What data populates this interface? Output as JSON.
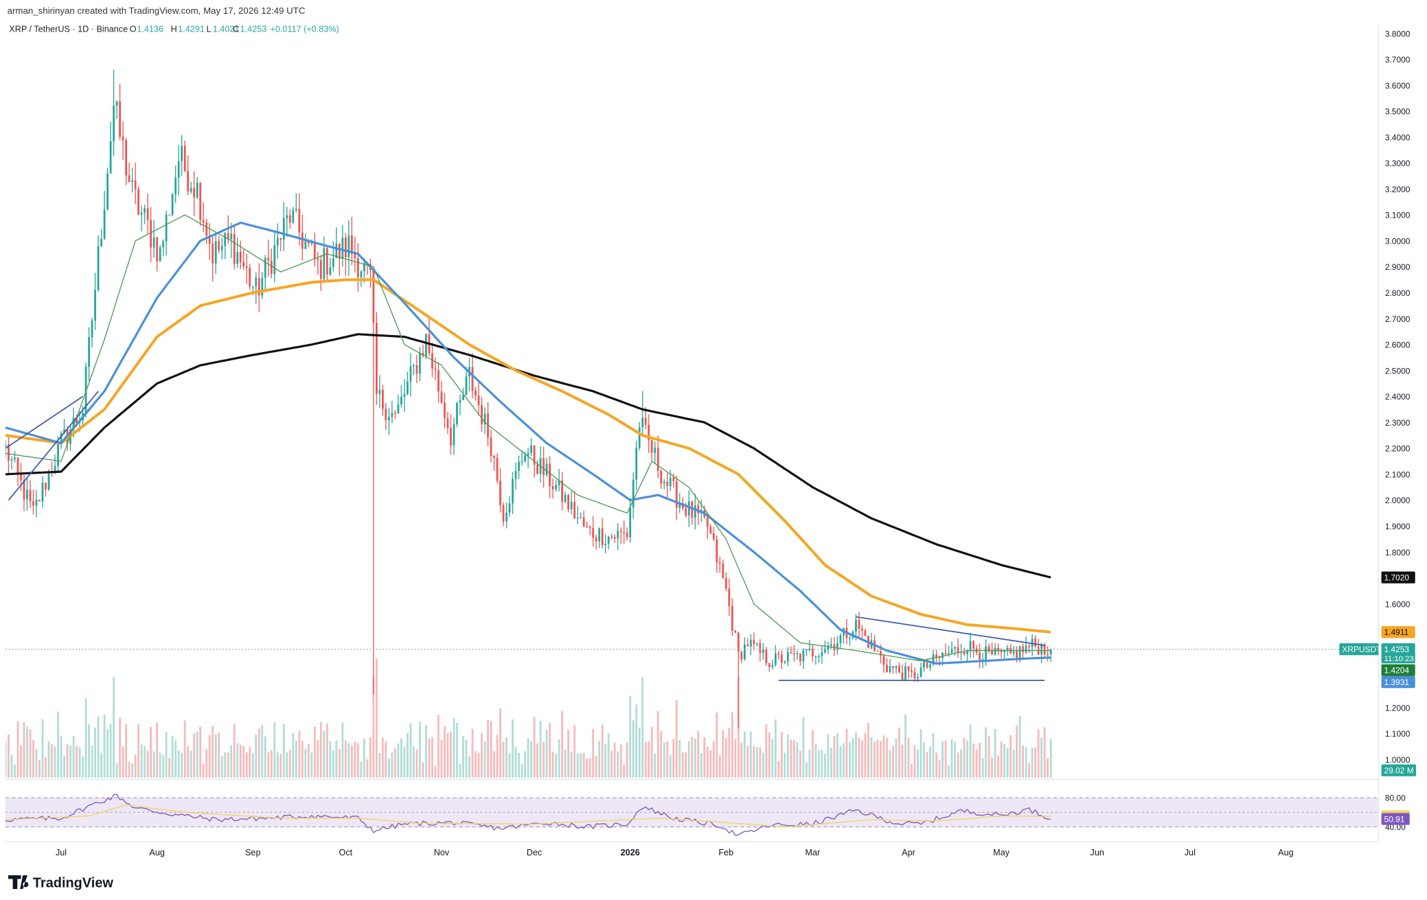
{
  "header": {
    "attribution": "arman_shirinyan created with TradingView.com, May 17, 2026 12:49 UTC",
    "symbol_line": "XRP / TetherUS · 1D · Binance",
    "ohlc": {
      "open_label": "O",
      "open": "1.4136",
      "high_label": "H",
      "high": "1.4291",
      "low_label": "L",
      "low": "1.4021",
      "close_label": "C",
      "close": "1.4253",
      "change": "+0.0117 (+0.83%)"
    }
  },
  "footer": {
    "logo_text": "TradingView"
  },
  "colors": {
    "up": "#26a69a",
    "down": "#ef5350",
    "ema_fast": "#4e9a52",
    "ema_mid": "#4a90d9",
    "ema_slow": "#f5a623",
    "ma_long": "#111111",
    "trendline": "#3b5ba9",
    "rsi": "#7e57c2",
    "rsi_ma": "#f4d35e",
    "rsi_band": "#ede7f6"
  },
  "chart_data": {
    "type": "candlestick",
    "symbol": "XRPUSDT",
    "timeframe": "1D",
    "exchange": "Binance",
    "x_range": [
      "2025-06-13",
      "2026-08-31"
    ],
    "x_tick_labels": [
      {
        "date": "2025-07-01",
        "label": "Jul"
      },
      {
        "date": "2025-08-01",
        "label": "Aug"
      },
      {
        "date": "2025-09-01",
        "label": "Sep"
      },
      {
        "date": "2025-10-01",
        "label": "Oct"
      },
      {
        "date": "2025-11-01",
        "label": "Nov"
      },
      {
        "date": "2025-12-01",
        "label": "Dec"
      },
      {
        "date": "2026-01-01",
        "label": "2026"
      },
      {
        "date": "2026-02-01",
        "label": "Feb"
      },
      {
        "date": "2026-03-01",
        "label": "Mar"
      },
      {
        "date": "2026-04-01",
        "label": "Apr"
      },
      {
        "date": "2026-05-01",
        "label": "May"
      },
      {
        "date": "2026-06-01",
        "label": "Jun"
      },
      {
        "date": "2026-07-01",
        "label": "Jul"
      },
      {
        "date": "2026-08-01",
        "label": "Aug"
      }
    ],
    "y_range": [
      0.93,
      3.83
    ],
    "y_tick_labels": [
      "1.0000",
      "1.1000",
      "1.2000",
      "1.3000",
      "1.4000",
      "1.5000",
      "1.6000",
      "1.7000",
      "1.8000",
      "1.9000",
      "2.0000",
      "2.1000",
      "2.2000",
      "2.3000",
      "2.4000",
      "2.5000",
      "2.6000",
      "2.7000",
      "2.8000",
      "2.9000",
      "3.0000",
      "3.1000",
      "3.2000",
      "3.3000",
      "3.4000",
      "3.5000",
      "3.6000",
      "3.7000",
      "3.8000"
    ],
    "price_anchors": [
      [
        "2025-06-13",
        2.2
      ],
      [
        "2025-06-22",
        1.95
      ],
      [
        "2025-07-01",
        2.22
      ],
      [
        "2025-07-08",
        2.35
      ],
      [
        "2025-07-12",
        2.82
      ],
      [
        "2025-07-18",
        3.52
      ],
      [
        "2025-07-24",
        3.18
      ],
      [
        "2025-08-02",
        2.95
      ],
      [
        "2025-08-08",
        3.32
      ],
      [
        "2025-08-14",
        3.2
      ],
      [
        "2025-08-19",
        2.95
      ],
      [
        "2025-08-25",
        3.0
      ],
      [
        "2025-09-02",
        2.8
      ],
      [
        "2025-09-13",
        3.1
      ],
      [
        "2025-09-22",
        2.9
      ],
      [
        "2025-10-02",
        2.98
      ],
      [
        "2025-10-09",
        2.85
      ],
      [
        "2025-10-11",
        2.4
      ],
      [
        "2025-10-17",
        2.32
      ],
      [
        "2025-10-27",
        2.62
      ],
      [
        "2025-11-04",
        2.25
      ],
      [
        "2025-11-10",
        2.48
      ],
      [
        "2025-11-17",
        2.22
      ],
      [
        "2025-11-21",
        1.95
      ],
      [
        "2025-11-28",
        2.2
      ],
      [
        "2025-12-08",
        2.05
      ],
      [
        "2025-12-18",
        1.88
      ],
      [
        "2025-12-25",
        1.86
      ],
      [
        "2025-12-31",
        1.87
      ],
      [
        "2026-01-04",
        2.3
      ],
      [
        "2026-01-07",
        2.22
      ],
      [
        "2026-01-12",
        2.08
      ],
      [
        "2026-01-18",
        1.98
      ],
      [
        "2026-01-26",
        1.9
      ],
      [
        "2026-02-01",
        1.65
      ],
      [
        "2026-02-05",
        1.4
      ],
      [
        "2026-02-08",
        1.45
      ],
      [
        "2026-02-15",
        1.38
      ],
      [
        "2026-02-26",
        1.4
      ],
      [
        "2026-03-08",
        1.45
      ],
      [
        "2026-03-15",
        1.52
      ],
      [
        "2026-03-25",
        1.36
      ],
      [
        "2026-04-02",
        1.32
      ],
      [
        "2026-04-12",
        1.4
      ],
      [
        "2026-04-20",
        1.44
      ],
      [
        "2026-04-27",
        1.4
      ],
      [
        "2026-05-04",
        1.4
      ],
      [
        "2026-05-11",
        1.44
      ],
      [
        "2026-05-17",
        1.4253
      ]
    ],
    "wick_events": [
      {
        "date": "2025-10-10",
        "low": 1.25,
        "high": 2.87
      },
      {
        "date": "2026-01-05",
        "high": 2.42
      },
      {
        "date": "2026-02-05",
        "low": 1.12
      },
      {
        "date": "2025-07-18",
        "high": 3.66
      }
    ],
    "indicators": {
      "ema_fast": {
        "name": "",
        "color": "#4e9a52",
        "points": [
          [
            "2025-06-13",
            2.18
          ],
          [
            "2025-07-01",
            2.15
          ],
          [
            "2025-07-15",
            2.62
          ],
          [
            "2025-07-25",
            3.0
          ],
          [
            "2025-08-10",
            3.1
          ],
          [
            "2025-08-25",
            3.0
          ],
          [
            "2025-09-10",
            2.88
          ],
          [
            "2025-09-25",
            2.95
          ],
          [
            "2025-10-10",
            2.9
          ],
          [
            "2025-10-20",
            2.6
          ],
          [
            "2025-11-01",
            2.52
          ],
          [
            "2025-11-15",
            2.3
          ],
          [
            "2025-12-01",
            2.15
          ],
          [
            "2025-12-15",
            2.02
          ],
          [
            "2025-12-31",
            1.95
          ],
          [
            "2026-01-08",
            2.15
          ],
          [
            "2026-01-20",
            2.05
          ],
          [
            "2026-02-01",
            1.85
          ],
          [
            "2026-02-10",
            1.6
          ],
          [
            "2026-02-25",
            1.45
          ],
          [
            "2026-03-15",
            1.42
          ],
          [
            "2026-04-05",
            1.38
          ],
          [
            "2026-04-20",
            1.42
          ],
          [
            "2026-05-05",
            1.42
          ],
          [
            "2026-05-17",
            1.4204
          ]
        ]
      },
      "ema_mid": {
        "name": "",
        "color": "#4a90d9",
        "points": [
          [
            "2025-06-13",
            2.28
          ],
          [
            "2025-07-01",
            2.22
          ],
          [
            "2025-07-15",
            2.42
          ],
          [
            "2025-08-01",
            2.78
          ],
          [
            "2025-08-15",
            3.0
          ],
          [
            "2025-08-28",
            3.07
          ],
          [
            "2025-09-10",
            3.03
          ],
          [
            "2025-09-25",
            2.98
          ],
          [
            "2025-10-05",
            2.95
          ],
          [
            "2025-10-20",
            2.76
          ],
          [
            "2025-11-05",
            2.55
          ],
          [
            "2025-11-20",
            2.38
          ],
          [
            "2025-12-05",
            2.22
          ],
          [
            "2025-12-20",
            2.1
          ],
          [
            "2026-01-01",
            2.0
          ],
          [
            "2026-01-10",
            2.02
          ],
          [
            "2026-01-25",
            1.95
          ],
          [
            "2026-02-10",
            1.8
          ],
          [
            "2026-02-25",
            1.65
          ],
          [
            "2026-03-10",
            1.5
          ],
          [
            "2026-03-25",
            1.42
          ],
          [
            "2026-04-10",
            1.37
          ],
          [
            "2026-04-25",
            1.38
          ],
          [
            "2026-05-10",
            1.39
          ],
          [
            "2026-05-17",
            1.3931
          ]
        ]
      },
      "ema_slow": {
        "name": "",
        "color": "#f5a623",
        "points": [
          [
            "2025-06-13",
            2.25
          ],
          [
            "2025-07-01",
            2.22
          ],
          [
            "2025-07-15",
            2.35
          ],
          [
            "2025-08-01",
            2.63
          ],
          [
            "2025-08-15",
            2.75
          ],
          [
            "2025-09-01",
            2.8
          ],
          [
            "2025-09-20",
            2.84
          ],
          [
            "2025-10-01",
            2.85
          ],
          [
            "2025-10-10",
            2.85
          ],
          [
            "2025-10-25",
            2.73
          ],
          [
            "2025-11-10",
            2.6
          ],
          [
            "2025-11-25",
            2.5
          ],
          [
            "2025-12-10",
            2.42
          ],
          [
            "2025-12-25",
            2.33
          ],
          [
            "2026-01-05",
            2.25
          ],
          [
            "2026-01-20",
            2.2
          ],
          [
            "2026-02-05",
            2.1
          ],
          [
            "2026-02-20",
            1.92
          ],
          [
            "2026-03-05",
            1.75
          ],
          [
            "2026-03-20",
            1.63
          ],
          [
            "2026-04-05",
            1.56
          ],
          [
            "2026-04-20",
            1.52
          ],
          [
            "2026-05-05",
            1.505
          ],
          [
            "2026-05-17",
            1.4911
          ]
        ]
      },
      "ma_long": {
        "name": "",
        "color": "#111111",
        "points": [
          [
            "2025-06-13",
            2.1
          ],
          [
            "2025-07-01",
            2.11
          ],
          [
            "2025-07-15",
            2.28
          ],
          [
            "2025-08-01",
            2.45
          ],
          [
            "2025-08-15",
            2.52
          ],
          [
            "2025-09-01",
            2.56
          ],
          [
            "2025-09-20",
            2.6
          ],
          [
            "2025-10-05",
            2.64
          ],
          [
            "2025-10-20",
            2.63
          ],
          [
            "2025-11-10",
            2.56
          ],
          [
            "2025-12-01",
            2.48
          ],
          [
            "2025-12-20",
            2.42
          ],
          [
            "2026-01-05",
            2.35
          ],
          [
            "2026-01-25",
            2.3
          ],
          [
            "2026-02-10",
            2.2
          ],
          [
            "2026-03-01",
            2.05
          ],
          [
            "2026-03-20",
            1.93
          ],
          [
            "2026-04-10",
            1.83
          ],
          [
            "2026-05-01",
            1.75
          ],
          [
            "2026-05-17",
            1.702
          ]
        ]
      }
    },
    "trendlines": [
      {
        "from": [
          "2025-06-14",
          2.0
        ],
        "to": [
          "2025-07-13",
          2.42
        ]
      },
      {
        "from": [
          "2025-06-13",
          2.2
        ],
        "to": [
          "2025-07-08",
          2.4
        ]
      },
      {
        "from": [
          "2026-03-15",
          1.55
        ],
        "to": [
          "2026-05-15",
          1.44
        ]
      },
      {
        "from": [
          "2026-02-18",
          1.305
        ],
        "to": [
          "2026-05-15",
          1.305
        ]
      }
    ],
    "price_labels": {
      "ma_long": "1.7020",
      "ema_slow": "1.4911",
      "symbol_tag": "XRPUSDT",
      "last_price": "1.4253",
      "countdown": "11:10:23",
      "ema_fast": "1.4204",
      "ema_mid": "1.3931",
      "volume": "29.02 M"
    },
    "volume_note": "volume histogram in lower section of main pane, last value 29.02 M",
    "rsi": {
      "levels": [
        "80.00",
        "40.00"
      ],
      "value": "50.91",
      "ma_value": "54.52",
      "y_range": [
        20,
        100
      ],
      "points": [
        [
          "2025-06-13",
          50
        ],
        [
          "2025-07-01",
          52
        ],
        [
          "2025-07-12",
          72
        ],
        [
          "2025-07-19",
          83
        ],
        [
          "2025-07-25",
          66
        ],
        [
          "2025-08-05",
          58
        ],
        [
          "2025-08-20",
          50
        ],
        [
          "2025-09-05",
          52
        ],
        [
          "2025-09-20",
          55
        ],
        [
          "2025-10-05",
          52
        ],
        [
          "2025-10-10",
          35
        ],
        [
          "2025-10-20",
          44
        ],
        [
          "2025-11-05",
          46
        ],
        [
          "2025-11-20",
          38
        ],
        [
          "2025-12-05",
          46
        ],
        [
          "2025-12-18",
          40
        ],
        [
          "2025-12-31",
          44
        ],
        [
          "2026-01-05",
          68
        ],
        [
          "2026-01-15",
          52
        ],
        [
          "2026-01-30",
          42
        ],
        [
          "2026-02-05",
          28
        ],
        [
          "2026-02-15",
          42
        ],
        [
          "2026-03-01",
          44
        ],
        [
          "2026-03-15",
          63
        ],
        [
          "2026-03-28",
          45
        ],
        [
          "2026-04-05",
          44
        ],
        [
          "2026-04-18",
          62
        ],
        [
          "2026-05-01",
          56
        ],
        [
          "2026-05-10",
          64
        ],
        [
          "2026-05-17",
          50.91
        ]
      ],
      "ma_points": [
        [
          "2025-06-13",
          50
        ],
        [
          "2025-07-10",
          55
        ],
        [
          "2025-07-22",
          70
        ],
        [
          "2025-08-10",
          60
        ],
        [
          "2025-09-10",
          52
        ],
        [
          "2025-10-05",
          52
        ],
        [
          "2025-10-25",
          45
        ],
        [
          "2025-12-01",
          44
        ],
        [
          "2026-01-10",
          52
        ],
        [
          "2026-02-01",
          46
        ],
        [
          "2026-02-20",
          40
        ],
        [
          "2026-03-20",
          50
        ],
        [
          "2026-04-10",
          48
        ],
        [
          "2026-05-01",
          55
        ],
        [
          "2026-05-17",
          54.52
        ]
      ]
    }
  }
}
